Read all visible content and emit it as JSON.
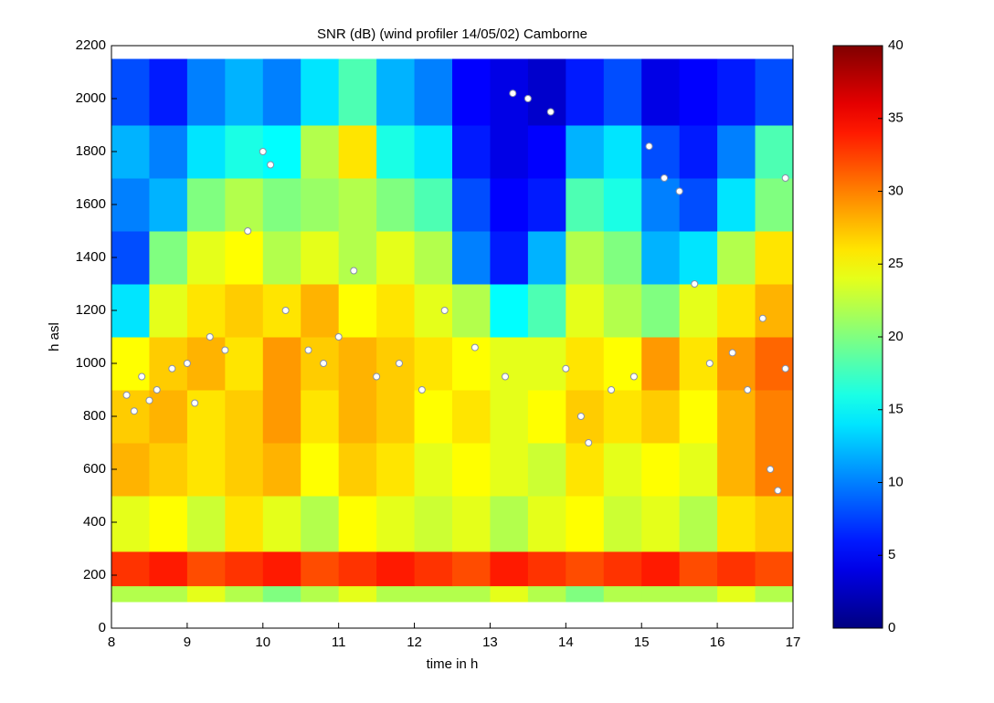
{
  "chart_data": {
    "type": "heatmap",
    "title": "SNR (dB) (wind profiler 14/05/02) Camborne",
    "x_label": "time in h",
    "y_label": "h asl",
    "xlim": [
      8,
      17
    ],
    "xticks": [
      8,
      9,
      10,
      11,
      12,
      13,
      14,
      15,
      16,
      17
    ],
    "ylim": [
      0,
      2200
    ],
    "yticks": [
      0,
      200,
      400,
      600,
      800,
      1000,
      1200,
      1400,
      1600,
      1800,
      2000,
      2200
    ],
    "x_edges": [
      8,
      8.5,
      9,
      9.5,
      10,
      10.5,
      11,
      11.5,
      12,
      12.5,
      13,
      13.5,
      14,
      14.5,
      15,
      15.5,
      16,
      16.5,
      17
    ],
    "y_edges": [
      100,
      160,
      290,
      500,
      700,
      900,
      1100,
      1300,
      1500,
      1700,
      1900,
      2150
    ],
    "z": [
      [
        22,
        22,
        24,
        22,
        20,
        22,
        24,
        22,
        22,
        22,
        24,
        22,
        20,
        22,
        22,
        22,
        24,
        22
      ],
      [
        33,
        34,
        32,
        33,
        34,
        32,
        33,
        34,
        33,
        32,
        34,
        33,
        32,
        33,
        34,
        32,
        33,
        32
      ],
      [
        24,
        25,
        23,
        26,
        24,
        22,
        25,
        24,
        23,
        24,
        22,
        24,
        25,
        23,
        24,
        22,
        26,
        27
      ],
      [
        28,
        27,
        26,
        27,
        28,
        25,
        27,
        26,
        24,
        25,
        24,
        23,
        26,
        24,
        25,
        24,
        28,
        30
      ],
      [
        27,
        28,
        26,
        27,
        29,
        26,
        28,
        27,
        25,
        26,
        24,
        25,
        27,
        26,
        27,
        25,
        28,
        30
      ],
      [
        25,
        27,
        28,
        26,
        29,
        27,
        28,
        27,
        26,
        25,
        24,
        24,
        26,
        25,
        29,
        26,
        29,
        31
      ],
      [
        14,
        24,
        26,
        27,
        26,
        28,
        25,
        26,
        24,
        22,
        15,
        18,
        24,
        22,
        20,
        24,
        26,
        28
      ],
      [
        8,
        20,
        24,
        25,
        22,
        24,
        22,
        24,
        22,
        10,
        6,
        12,
        22,
        20,
        12,
        14,
        22,
        26
      ],
      [
        10,
        12,
        20,
        22,
        20,
        21,
        22,
        20,
        18,
        8,
        5,
        6,
        18,
        16,
        10,
        8,
        14,
        20
      ],
      [
        12,
        10,
        14,
        16,
        15,
        22,
        26,
        16,
        14,
        6,
        4,
        5,
        12,
        14,
        8,
        6,
        10,
        18
      ],
      [
        8,
        6,
        10,
        12,
        10,
        14,
        18,
        12,
        10,
        5,
        4,
        3,
        6,
        8,
        4,
        5,
        6,
        8
      ]
    ],
    "colormap": "jet",
    "clim": [
      0,
      40
    ],
    "cticks": [
      0,
      5,
      10,
      15,
      20,
      25,
      30,
      35,
      40
    ],
    "points": {
      "x": [
        8.2,
        8.3,
        8.4,
        8.5,
        8.6,
        8.8,
        9.0,
        9.1,
        9.3,
        9.5,
        9.8,
        10.0,
        10.1,
        10.3,
        10.6,
        10.8,
        11.0,
        11.2,
        11.5,
        11.8,
        12.1,
        12.4,
        12.8,
        13.2,
        13.3,
        13.5,
        13.8,
        14.0,
        14.2,
        14.3,
        14.6,
        14.9,
        15.1,
        15.3,
        15.5,
        15.7,
        15.9,
        16.2,
        16.4,
        16.6,
        16.7,
        16.8,
        16.9,
        16.9
      ],
      "y": [
        880,
        820,
        950,
        860,
        900,
        980,
        1000,
        850,
        1100,
        1050,
        1500,
        1800,
        1750,
        1200,
        1050,
        1000,
        1100,
        1350,
        950,
        1000,
        900,
        1200,
        1060,
        950,
        2020,
        2000,
        1950,
        980,
        800,
        700,
        900,
        950,
        1820,
        1700,
        1650,
        1300,
        1000,
        1040,
        900,
        1170,
        600,
        520,
        1700,
        980
      ]
    }
  }
}
